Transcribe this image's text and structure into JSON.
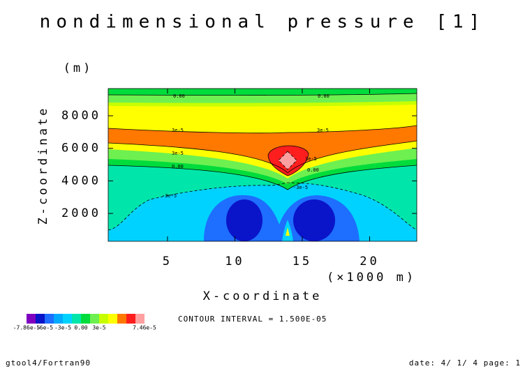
{
  "chart_data": {
    "type": "contour",
    "title": "nondimensional pressure [1]",
    "x_label": "X-coordinate",
    "x_unit": "(×1000 m)",
    "y_label": "Z-coordinate",
    "y_unit": "(m)",
    "xlim": [
      0.6,
      23.5
    ],
    "xticks": [
      5,
      10,
      15,
      20
    ],
    "ylim": [
      290,
      9670
    ],
    "yticks": [
      2000,
      4000,
      6000,
      8000
    ],
    "contour_interval": "CONTOUR INTERVAL = 1.500E-05",
    "colorbar": {
      "colors": [
        "#8000c0",
        "#0a14c8",
        "#1e6eff",
        "#00aaff",
        "#00d2ff",
        "#00e6aa",
        "#00dc3c",
        "#6ef050",
        "#c8ff00",
        "#ffff00",
        "#ff7800",
        "#ff1e1e",
        "#ffa0a0"
      ],
      "labels": [
        "-7.86e-5",
        "-6e-5",
        "-3e-5",
        "0.00",
        "3e-5",
        "7.46e-5"
      ]
    },
    "contour_labels": [
      "0.00",
      "0.00",
      "3e-5",
      "3e-5",
      "3e-5",
      "3e-5",
      "0.00",
      "0.00",
      "-3e-5",
      "-3e-5"
    ]
  },
  "footer": {
    "left": "gtool4/Fortran90",
    "right": "date: 4/ 1/ 4 page: 1"
  }
}
